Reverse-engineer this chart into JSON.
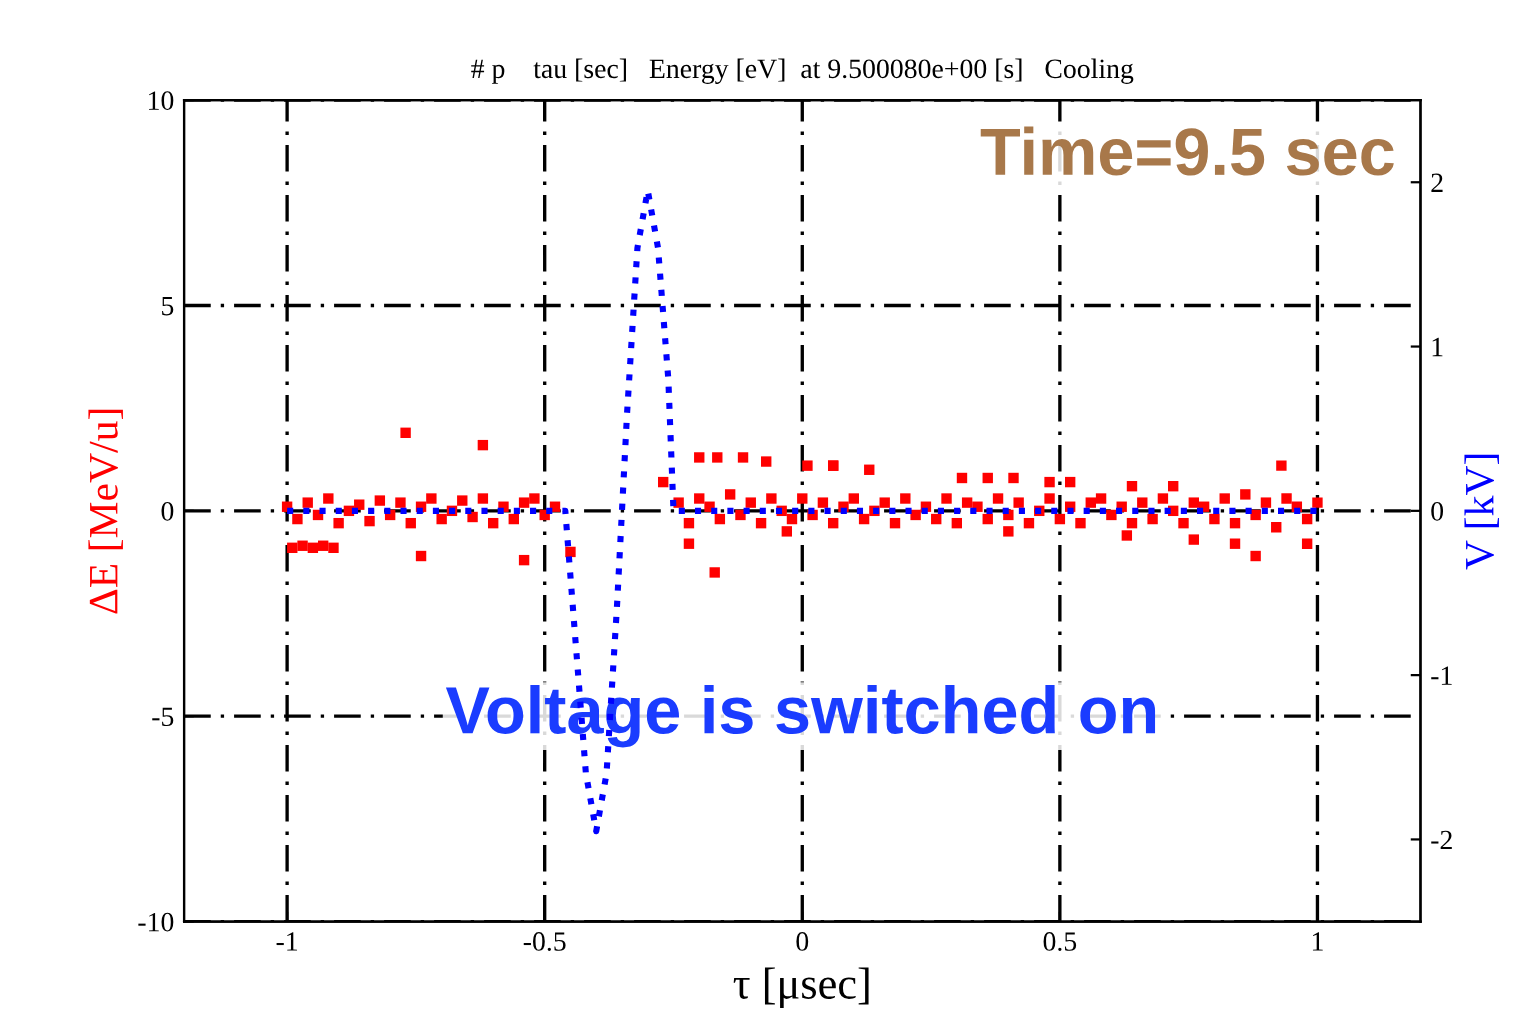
{
  "chart_data": {
    "type": "scatter",
    "title": "# p    tau [sec]   Energy [eV]  at 9.500080e+00 [s]   Cooling",
    "xlabel": "τ [μsec]",
    "ylabel": "ΔE [MeV/u]",
    "y2label": "V [kV]",
    "annotations": [
      "Time=9.5 sec",
      "Voltage is switched on"
    ],
    "xlim": [
      -1.2,
      1.2
    ],
    "xticks": [
      -1,
      -0.5,
      0,
      0.5,
      1
    ],
    "ylim": [
      -10,
      10
    ],
    "yticks": [
      -10,
      -5,
      0,
      5,
      10
    ],
    "y2lim": [
      -2.5,
      2.5
    ],
    "y2ticks": [
      -2,
      -1,
      0,
      1,
      2
    ],
    "grid": true,
    "legend": false,
    "series": [
      {
        "color": "#ff0000",
        "marker": "square",
        "x": [
          -1.0,
          -0.98,
          -0.96,
          -0.94,
          -0.92,
          -0.9,
          -0.88,
          -0.86,
          -0.84,
          -0.82,
          -0.8,
          -0.78,
          -0.76,
          -0.74,
          -0.72,
          -0.7,
          -0.68,
          -0.66,
          -0.64,
          -0.62,
          -0.6,
          -0.58,
          -0.56,
          -0.54,
          -0.52,
          -0.5,
          -0.48,
          -0.99,
          -0.97,
          -0.95,
          -0.93,
          -0.91,
          -0.77,
          -0.74,
          -0.62,
          -0.54,
          -0.45,
          -0.27,
          -0.2,
          -0.165,
          -0.115,
          -0.07,
          0.01,
          0.06,
          -0.22,
          -0.17,
          -0.03,
          0.06,
          0.13,
          0.31,
          0.36,
          0.41,
          0.48,
          0.52,
          0.72,
          0.64,
          0.93,
          0.84,
          0.88,
          0.98,
          0.76,
          0.63,
          0.4,
          -0.24,
          -0.22,
          -0.2,
          -0.18,
          -0.16,
          -0.14,
          -0.12,
          -0.1,
          -0.08,
          -0.06,
          -0.04,
          -0.02,
          0.0,
          0.02,
          0.04,
          0.06,
          0.08,
          0.1,
          0.12,
          0.14,
          0.16,
          0.18,
          0.2,
          0.22,
          0.24,
          0.26,
          0.28,
          0.3,
          0.32,
          0.34,
          0.36,
          0.38,
          0.4,
          0.42,
          0.44,
          0.46,
          0.48,
          0.5,
          0.52,
          0.54,
          0.56,
          0.58,
          0.6,
          0.62,
          0.64,
          0.66,
          0.68,
          0.7,
          0.72,
          0.74,
          0.76,
          0.78,
          0.8,
          0.82,
          0.84,
          0.86,
          0.88,
          0.9,
          0.92,
          0.94,
          0.96,
          0.98,
          1.0
        ],
        "values": [
          0.1,
          -0.2,
          0.2,
          -0.1,
          0.3,
          -0.3,
          0.0,
          0.15,
          -0.25,
          0.25,
          -0.1,
          0.2,
          -0.3,
          0.1,
          0.3,
          -0.2,
          0.0,
          0.25,
          -0.15,
          0.3,
          -0.3,
          0.1,
          -0.2,
          0.2,
          0.3,
          -0.1,
          0.1,
          -0.9,
          -0.85,
          -0.9,
          -0.85,
          -0.9,
          1.9,
          -1.1,
          1.6,
          -1.2,
          -1.0,
          0.7,
          1.3,
          1.3,
          1.3,
          1.2,
          1.1,
          1.1,
          -0.8,
          -1.5,
          -0.5,
          1.1,
          1.0,
          0.8,
          0.8,
          0.8,
          0.7,
          0.7,
          0.6,
          0.6,
          1.1,
          -0.8,
          -1.1,
          -0.8,
          -0.7,
          -0.6,
          -0.5,
          0.2,
          -0.3,
          0.3,
          0.1,
          -0.2,
          0.4,
          -0.1,
          0.2,
          -0.3,
          0.3,
          0.0,
          -0.2,
          0.3,
          -0.1,
          0.2,
          -0.3,
          0.1,
          0.3,
          -0.2,
          0.0,
          0.2,
          -0.3,
          0.3,
          -0.1,
          0.1,
          -0.2,
          0.3,
          -0.3,
          0.2,
          0.1,
          -0.2,
          0.3,
          -0.1,
          0.2,
          -0.3,
          0.0,
          0.3,
          -0.2,
          0.1,
          -0.3,
          0.2,
          0.3,
          -0.1,
          0.1,
          -0.3,
          0.2,
          -0.2,
          0.3,
          0.0,
          -0.3,
          0.2,
          0.1,
          -0.2,
          0.3,
          -0.3,
          0.4,
          -0.1,
          0.2,
          -0.4,
          0.3,
          0.1,
          -0.2,
          0.2
        ]
      },
      {
        "type": "line",
        "axis": "y2",
        "color": "#0000ff",
        "line_style": "dotted",
        "x": [
          -1.0,
          -0.46,
          -0.44,
          -0.42,
          -0.4,
          -0.38,
          -0.36,
          -0.35,
          -0.34,
          -0.32,
          -0.3,
          -0.28,
          -0.26,
          -0.25,
          1.0
        ],
        "values": [
          0,
          0,
          -0.8,
          -1.6,
          -1.95,
          -1.6,
          -0.6,
          0,
          0.6,
          1.6,
          1.95,
          1.6,
          0.8,
          0,
          0
        ]
      }
    ]
  }
}
